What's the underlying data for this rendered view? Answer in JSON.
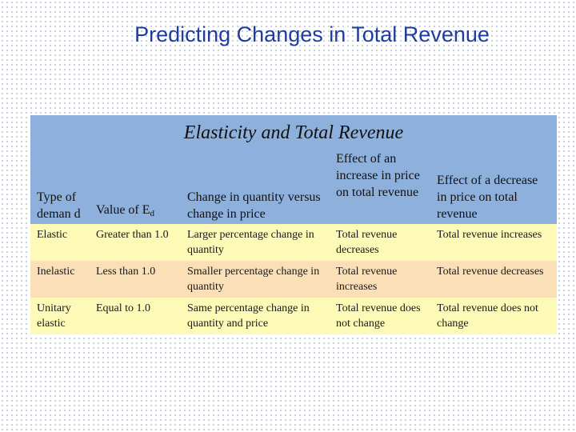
{
  "slide": {
    "title": "Predicting Changes in Total Revenue"
  },
  "table": {
    "caption": "Elasticity and Total Revenue",
    "headers": {
      "type": "Type of deman d",
      "value_prefix": "Value of E",
      "value_sub": "d",
      "change": "Change in quantity versus change in price",
      "increase": "Effect of an increase in price on total revenue",
      "decrease": "Effect of a decrease in price on total revenue"
    },
    "rows": [
      {
        "type": "Elastic",
        "value": "Greater than 1.0",
        "change": "Larger percentage change in quantity",
        "increase": "Total revenue decreases",
        "decrease": "Total revenue increases"
      },
      {
        "type": "Inelastic",
        "value": "Less than 1.0",
        "change": "Smaller percentage change in quantity",
        "increase": "Total revenue increases",
        "decrease": "Total revenue decreases"
      },
      {
        "type": "Unitary elastic",
        "value": "Equal to 1.0",
        "change": "Same percentage change in quantity and price",
        "increase": "Total revenue does not change",
        "decrease": "Total revenue does not change"
      }
    ]
  }
}
